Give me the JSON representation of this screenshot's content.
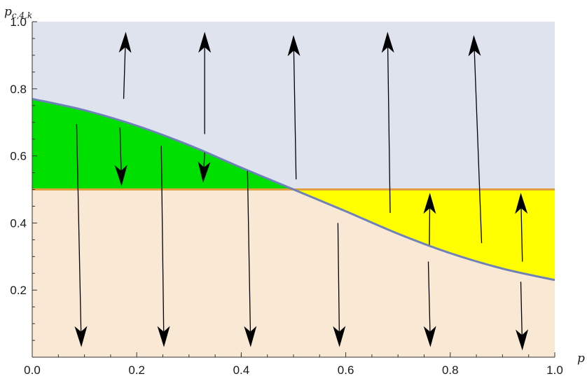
{
  "chart_data": {
    "type": "area",
    "xlabel": "p",
    "ylabel_main": "p",
    "ylabel_sub": "c,4,k",
    "xlim": [
      0.0,
      1.0
    ],
    "ylim": [
      0.0,
      1.0
    ],
    "x_ticks": [
      "0.0",
      "0.2",
      "0.4",
      "0.6",
      "0.8",
      "1.0"
    ],
    "x_tick_values": [
      0.0,
      0.2,
      0.4,
      0.6,
      0.8,
      1.0
    ],
    "y_ticks": [
      "0.2",
      "0.4",
      "0.6",
      "0.8",
      "1.0"
    ],
    "y_tick_values": [
      0.2,
      0.4,
      0.6,
      0.8,
      1.0
    ],
    "grid": false,
    "colors": {
      "upper_region": "#dfe3ee",
      "lower_region": "#f8e8d4",
      "green_region": "#00e000",
      "yellow_region": "#ffff00",
      "curve": "#6f82b8",
      "threshold_line": "#e0a040",
      "arrow": "#000000"
    },
    "threshold": 0.5,
    "curve": {
      "x": [
        0.0,
        0.1,
        0.2,
        0.3,
        0.4,
        0.5,
        0.6,
        0.7,
        0.8,
        0.9,
        1.0
      ],
      "y": [
        0.77,
        0.736,
        0.69,
        0.632,
        0.565,
        0.5,
        0.435,
        0.368,
        0.31,
        0.264,
        0.23
      ]
    },
    "arrows": [
      {
        "x1": 0.175,
        "y1": 0.77,
        "x2": 0.179,
        "y2": 0.97
      },
      {
        "x1": 0.33,
        "y1": 0.665,
        "x2": 0.33,
        "y2": 0.97
      },
      {
        "x1": 0.505,
        "y1": 0.53,
        "x2": 0.5,
        "y2": 0.96
      },
      {
        "x1": 0.685,
        "y1": 0.43,
        "x2": 0.68,
        "y2": 0.97
      },
      {
        "x1": 0.86,
        "y1": 0.34,
        "x2": 0.845,
        "y2": 0.96
      },
      {
        "x1": 0.168,
        "y1": 0.685,
        "x2": 0.171,
        "y2": 0.51
      },
      {
        "x1": 0.33,
        "y1": 0.61,
        "x2": 0.327,
        "y2": 0.52
      },
      {
        "x1": 0.76,
        "y1": 0.335,
        "x2": 0.761,
        "y2": 0.49
      },
      {
        "x1": 0.938,
        "y1": 0.285,
        "x2": 0.935,
        "y2": 0.49
      },
      {
        "x1": 0.085,
        "y1": 0.695,
        "x2": 0.094,
        "y2": 0.03
      },
      {
        "x1": 0.247,
        "y1": 0.63,
        "x2": 0.252,
        "y2": 0.03
      },
      {
        "x1": 0.412,
        "y1": 0.555,
        "x2": 0.418,
        "y2": 0.03
      },
      {
        "x1": 0.585,
        "y1": 0.4,
        "x2": 0.588,
        "y2": 0.03
      },
      {
        "x1": 0.758,
        "y1": 0.285,
        "x2": 0.762,
        "y2": 0.03
      },
      {
        "x1": 0.935,
        "y1": 0.225,
        "x2": 0.938,
        "y2": 0.02
      }
    ]
  }
}
